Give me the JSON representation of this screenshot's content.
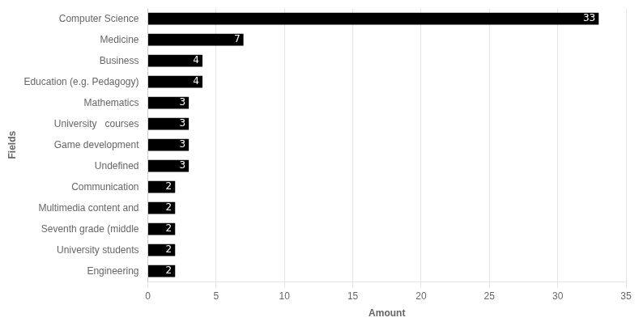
{
  "chart_data": {
    "type": "bar",
    "orientation": "horizontal",
    "categories": [
      "Engineering",
      "University students",
      "Seventh grade (middle",
      "Multimedia content and",
      "Communication",
      "Undefined",
      "Game development",
      "University   courses",
      "Mathematics",
      "Education (e.g. Pedagogy)",
      "Business",
      "Medicine",
      "Computer Science"
    ],
    "values": [
      2,
      2,
      2,
      2,
      2,
      3,
      3,
      3,
      3,
      4,
      4,
      7,
      33
    ],
    "color": "#000000",
    "xlabel": "Amount",
    "ylabel": "Fields",
    "xlim": [
      0,
      35
    ],
    "xticks": [
      0,
      5,
      10,
      15,
      20,
      25,
      30,
      35
    ],
    "grid": "x",
    "data_labels": true
  }
}
